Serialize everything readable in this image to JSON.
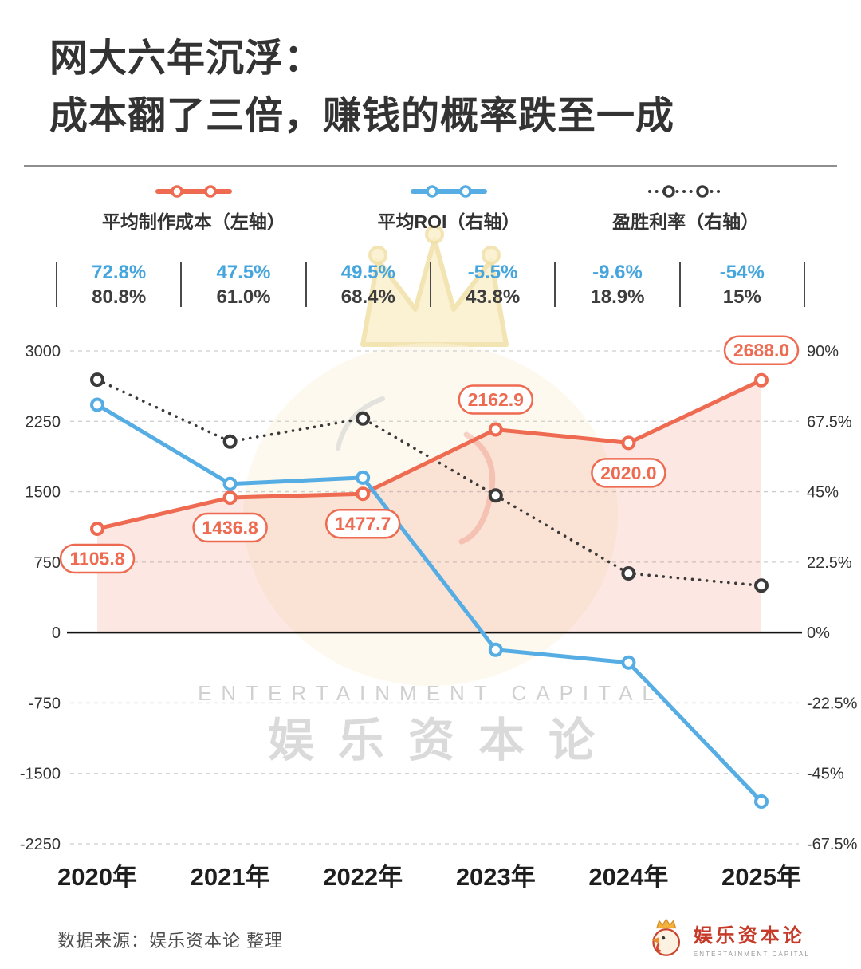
{
  "title": {
    "line1": "网大六年沉浮：",
    "line2": "成本翻了三倍，赚钱的概率跌至一成"
  },
  "legend": [
    {
      "label": "平均制作成本（左轴）",
      "style": "solid",
      "color": "#ee6a51"
    },
    {
      "label": "平均ROI（右轴）",
      "style": "solid",
      "color": "#56ade4"
    },
    {
      "label": "盈胜利率（右轴）",
      "style": "dotted",
      "color": "#3a3a3a"
    }
  ],
  "annotation_rows": {
    "roi": [
      "72.8%",
      "47.5%",
      "49.5%",
      "-5.5%",
      "-9.6%",
      "-54%"
    ],
    "win_rate": [
      "80.8%",
      "61.0%",
      "68.4%",
      "43.8%",
      "18.9%",
      "15%"
    ]
  },
  "chart_data": {
    "type": "line",
    "categories": [
      "2020年",
      "2021年",
      "2022年",
      "2023年",
      "2024年",
      "2025年"
    ],
    "series": [
      {
        "name": "平均制作成本（左轴）",
        "axis": "left",
        "color": "#ee6a51",
        "style": "solid",
        "area": true,
        "values": [
          1105.8,
          1436.8,
          1477.7,
          2162.9,
          2020.0,
          2688.0
        ],
        "labels": [
          "1105.8",
          "1436.8",
          "1477.7",
          "2162.9",
          "2020.0",
          "2688.0"
        ],
        "label_pos": [
          "below",
          "below",
          "below",
          "above",
          "below",
          "above"
        ]
      },
      {
        "name": "平均ROI（右轴）",
        "axis": "right",
        "color": "#56ade4",
        "style": "solid",
        "values": [
          72.8,
          47.5,
          49.5,
          -5.5,
          -9.6,
          -54
        ]
      },
      {
        "name": "盈胜利率（右轴）",
        "axis": "right",
        "color": "#3a3a3a",
        "style": "dotted",
        "values": [
          80.8,
          61.0,
          68.4,
          43.8,
          18.9,
          15
        ]
      }
    ],
    "left_axis": {
      "ticks": [
        3000,
        2250,
        1500,
        750,
        0,
        -750,
        -1500,
        -2250
      ],
      "min": -2250,
      "max": 3000
    },
    "right_axis": {
      "ticks": [
        "90%",
        "67.5%",
        "45%",
        "22.5%",
        "0%",
        "-22.5%",
        "-45%",
        "-67.5%"
      ],
      "min": -67.5,
      "max": 90
    },
    "grid": "dashed-horizontal",
    "legend_position": "top"
  },
  "watermark": {
    "text_en": "ENTERTAINMENT CAPITAL",
    "text_cn": "娱乐资本论"
  },
  "footer": {
    "source": "数据来源：娱乐资本论 整理",
    "logo_cn": "娱乐资本论",
    "logo_en": "ENTERTAINMENT CAPITAL"
  },
  "colors": {
    "cost": "#ee6a51",
    "roi": "#56ade4",
    "win_rate": "#3a3a3a",
    "annotation_blue": "#45a5dd",
    "annotation_dark": "#3d3d3d"
  }
}
